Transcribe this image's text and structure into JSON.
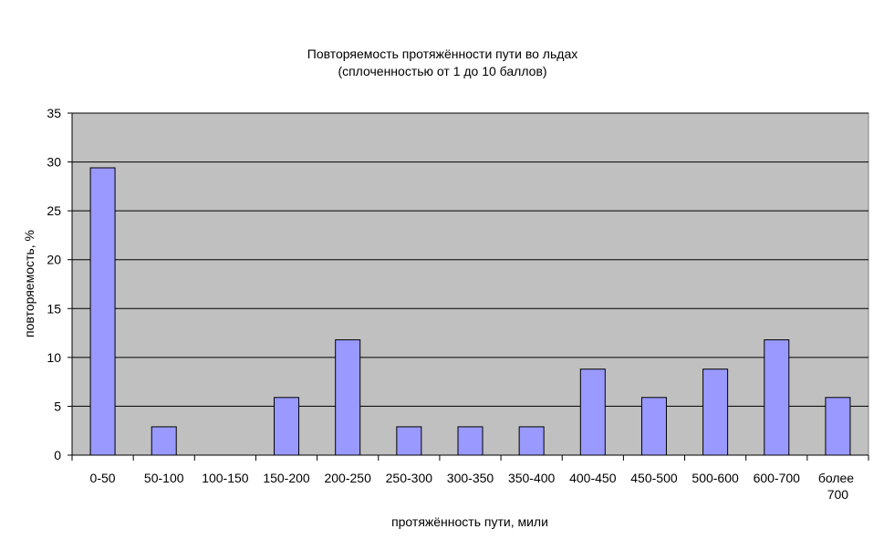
{
  "chart_data": {
    "type": "bar",
    "title": "Повторяемость протяжённости пути во льдах",
    "subtitle": "(сплоченностью от 1 до 10 баллов)",
    "x_label": "протяжённость пути, мили",
    "y_label": "повторяемость, %",
    "categories": [
      "0-50",
      "50-100",
      "100-150",
      "150-200",
      "200-250",
      "250-300",
      "300-350",
      "350-400",
      "400-450",
      "450-500",
      "500-600",
      "600-700",
      "более 700"
    ],
    "values": [
      29.4,
      2.9,
      0,
      5.9,
      11.8,
      2.9,
      2.9,
      2.9,
      8.8,
      5.9,
      8.8,
      11.8,
      5.9
    ],
    "color": "#9999ff",
    "ylim": [
      0,
      35
    ],
    "yticks": [
      0,
      5,
      10,
      15,
      20,
      25,
      30,
      35
    ],
    "grid": true
  }
}
